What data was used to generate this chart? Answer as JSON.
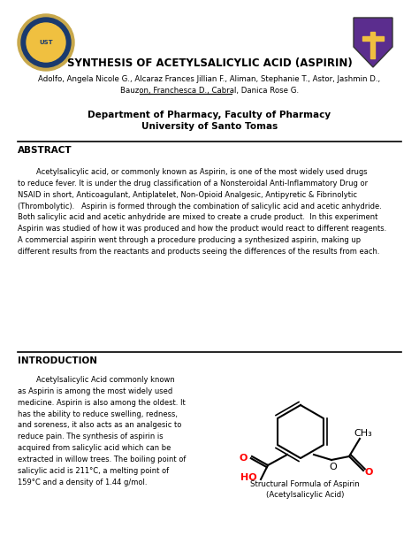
{
  "title": "SYNTHESIS OF ACETYLSALICYLIC ACID (ASPIRIN)",
  "authors_line1": "Adolfo, Angela Nicole G., Alcaraz Frances Jillian F., Aliman, Stephanie T., Astor, Jashmin D.,",
  "authors_line2": "Bauzon, Franchesca D., Cabral, Danica Rose G.",
  "dept_line1": "Department of Pharmacy, Faculty of Pharmacy",
  "dept_line2": "University of Santo Tomas",
  "abstract_title": "ABSTRACT",
  "abstract_text": "        Acetylsalicylic acid, or commonly known as Aspirin, is one of the most widely used drugs\nto reduce fever. It is under the drug classification of a Nonsteroidal Anti-Inflammatory Drug or\nNSAID in short, Anticoagulant, Antiplatelet, Non-Opioid Analgesic, Antipyretic & Fibrinolytic\n(Thrombolytic).   Aspirin is formed through the combination of salicylic acid and acetic anhydride.\nBoth salicylic acid and acetic anhydride are mixed to create a crude product.  In this experiment\nAspirin was studied of how it was produced and how the product would react to different reagents.\nA commercial aspirin went through a procedure producing a synthesized aspirin, making up\ndifferent results from the reactants and products seeing the differences of the results from each.",
  "intro_title": "INTRODUCTION",
  "intro_text": "        Acetylsalicylic Acid commonly known\nas Aspirin is among the most widely used\nmedicine. Aspirin is also among the oldest. It\nhas the ability to reduce swelling, redness,\nand soreness, it also acts as an analgesic to\nreduce pain. The synthesis of aspirin is\nacquired from salicylic acid which can be\nextracted in willow trees. The boiling point of\nsalicylic acid is 211°C, a melting point of\n159°C and a density of 1.44 g/mol.",
  "struct_caption_line1": "Structural Formula of Aspirin",
  "struct_caption_line2": "(Acetylsalicylic Acid)",
  "bg_color": "#ffffff",
  "text_color": "#000000"
}
